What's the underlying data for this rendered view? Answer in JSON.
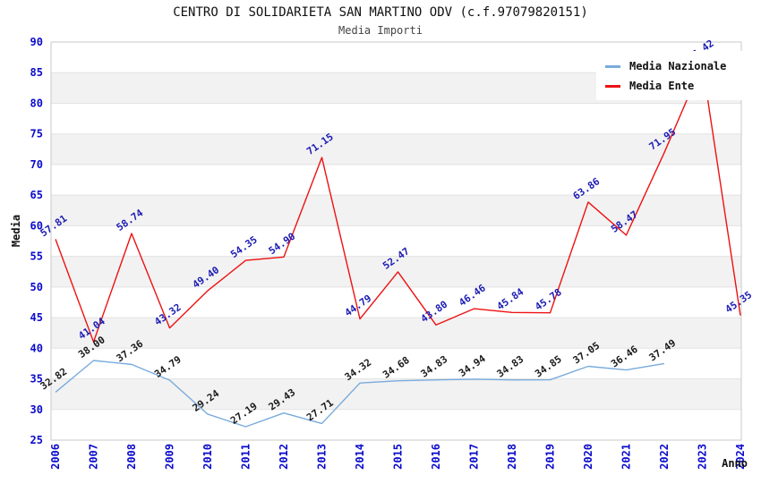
{
  "title": "CENTRO DI SOLIDARIETA SAN MARTINO ODV (c.f.97079820151)",
  "subtitle": "Media Importi",
  "chart_data": {
    "type": "line",
    "title": "CENTRO DI SOLIDARIETA SAN MARTINO ODV (c.f.97079820151)",
    "subtitle": "Media Importi",
    "xlabel": "Anno",
    "ylabel": "Media",
    "ylim": [
      25,
      90
    ],
    "ytick_step": 5,
    "grid": true,
    "band_stripes": true,
    "legend_position": "top-right",
    "x": [
      2006,
      2007,
      2008,
      2009,
      2010,
      2011,
      2012,
      2013,
      2014,
      2015,
      2016,
      2017,
      2018,
      2019,
      2020,
      2021,
      2022,
      2023,
      2024
    ],
    "series": [
      {
        "name": "Media Nazionale",
        "color": "#78abdc",
        "label_color": "#1a1a1a",
        "values": [
          32.82,
          38.0,
          37.36,
          34.79,
          29.24,
          27.19,
          29.43,
          27.71,
          34.32,
          34.68,
          34.83,
          34.94,
          34.83,
          34.85,
          37.05,
          36.46,
          37.49,
          null,
          null
        ]
      },
      {
        "name": "Media Ente",
        "color": "#ee1111",
        "label_color": "#1c1cb4",
        "values": [
          57.81,
          41.04,
          58.74,
          43.32,
          49.4,
          54.35,
          54.9,
          71.15,
          44.79,
          52.47,
          43.8,
          46.46,
          45.84,
          45.78,
          63.86,
          58.47,
          71.95,
          86.42,
          45.35
        ]
      }
    ],
    "colors": {
      "tick_label": "#0a0acc",
      "axis_title": "#111111",
      "band_fill": "#f2f2f2",
      "gridline": "#e3e3e3",
      "plot_border": "#c9c9c9"
    }
  }
}
